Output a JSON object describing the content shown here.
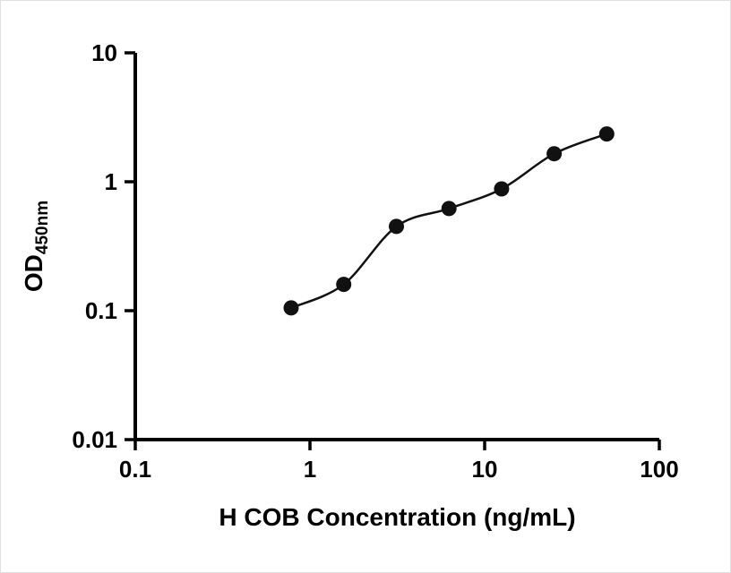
{
  "chart_data": {
    "type": "scatter",
    "title": "",
    "xlabel": "H COB Concentration (ng/mL)",
    "ylabel_main": "OD",
    "ylabel_sub": "450nm",
    "x_scale": "log",
    "y_scale": "log",
    "xlim": [
      0.1,
      100
    ],
    "ylim": [
      0.01,
      10
    ],
    "x_ticks": [
      0.1,
      1,
      10,
      100
    ],
    "x_tick_labels": [
      "0.1",
      "1",
      "10",
      "100"
    ],
    "y_ticks": [
      0.01,
      0.1,
      1,
      10
    ],
    "y_tick_labels": [
      "0.01",
      "0.1",
      "1",
      "10"
    ],
    "grid": false,
    "legend": "none",
    "points": [
      {
        "x": 0.78,
        "y": 0.105
      },
      {
        "x": 1.56,
        "y": 0.16
      },
      {
        "x": 3.125,
        "y": 0.45
      },
      {
        "x": 6.25,
        "y": 0.62
      },
      {
        "x": 12.5,
        "y": 0.88
      },
      {
        "x": 25,
        "y": 1.65
      },
      {
        "x": 50,
        "y": 2.35
      }
    ],
    "curve": "smooth fit line through data points, drawn from first to last point",
    "marker_shape": "filled-circle",
    "marker_color": "#111111",
    "line_color": "#111111",
    "axis_color": "#000000",
    "background_color": "#ffffff"
  }
}
